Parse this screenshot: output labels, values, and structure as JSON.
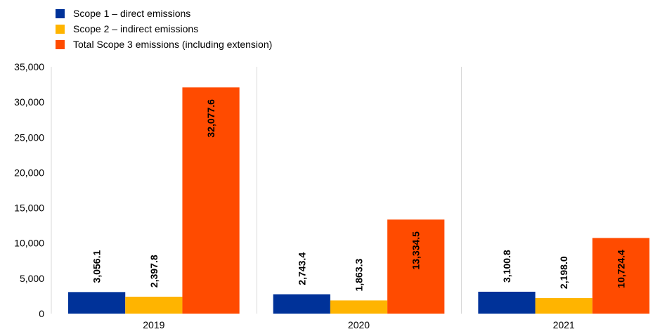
{
  "chart_data": {
    "type": "bar",
    "categories": [
      "2019",
      "2020",
      "2021"
    ],
    "series": [
      {
        "name": "Scope 1 – direct emissions",
        "values": [
          3056.1,
          2743.4,
          3100.8
        ],
        "labels": [
          "3,056.1",
          "2,743.4",
          "3,100.8"
        ],
        "color": "#003299"
      },
      {
        "name": "Scope 2 – indirect emissions",
        "values": [
          2397.8,
          1863.3,
          2198.0
        ],
        "labels": [
          "2,397.8",
          "1,863.3",
          "2,198.0"
        ],
        "color": "#FFB400"
      },
      {
        "name": "Total Scope 3 emissions (including extension)",
        "values": [
          32077.6,
          13334.5,
          10724.4
        ],
        "labels": [
          "32,077.6",
          "13,334.5",
          "10,724.4"
        ],
        "color": "#FF4B00"
      }
    ],
    "yticks": [
      0,
      5000,
      10000,
      15000,
      20000,
      25000,
      30000,
      35000
    ],
    "ytick_labels": [
      "0",
      "5,000",
      "10,000",
      "15,000",
      "20,000",
      "25,000",
      "30,000",
      "35,000"
    ],
    "ylim": [
      0,
      35000
    ],
    "grid": "vertical separators between categories",
    "legend_position": "top-left",
    "title": "",
    "xlabel": "",
    "ylabel": ""
  }
}
